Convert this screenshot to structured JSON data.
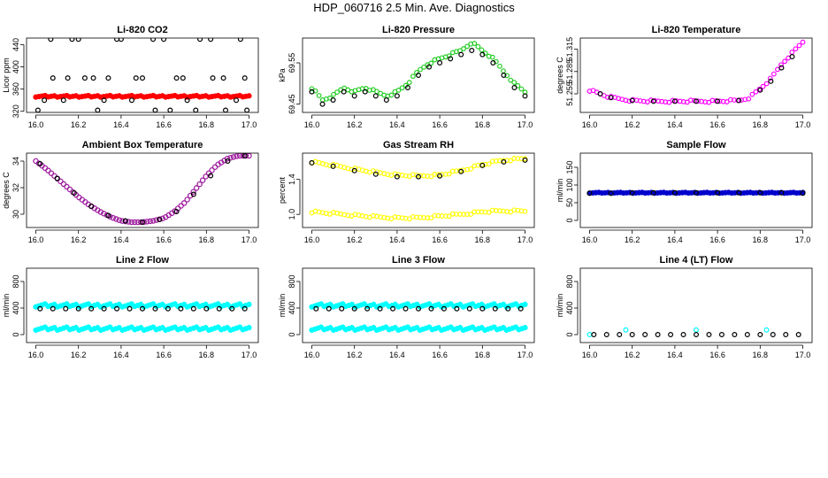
{
  "figure": {
    "title": "HDP_060716  2.5 Min. Ave. Diagnostics"
  },
  "colors": {
    "red": "#ff0000",
    "green": "#22cc22",
    "magenta": "#ff00ff",
    "purple": "#a020a0",
    "yellow": "#ffff00",
    "blue": "#0000cc",
    "cyan": "#00ffff",
    "black": "#000000"
  },
  "chart_data": [
    {
      "id": "co2",
      "type": "scatter",
      "title": "Li-820 CO2",
      "ylabel": "Licor ppm",
      "xlim": [
        16.0,
        17.0
      ],
      "ylim": [
        318,
        452
      ],
      "xticks": [
        "16.0",
        "16.2",
        "16.4",
        "16.6",
        "16.8",
        "17.0"
      ],
      "xtick_values": [
        16.0,
        16.2,
        16.4,
        16.6,
        16.8,
        17.0
      ],
      "yticks": [
        "320",
        "360",
        "400",
        "440"
      ],
      "ytick_values": [
        320,
        360,
        400,
        440
      ],
      "series": [
        {
          "name": "instrument",
          "color": "red",
          "style": "band",
          "x": [
            16.0,
            17.0
          ],
          "y": [
            347,
            347
          ],
          "spread": 4
        },
        {
          "name": "averages",
          "color": "black",
          "style": "open",
          "x": [
            16.01,
            16.04,
            16.08,
            16.13,
            16.17,
            16.23,
            16.29,
            16.34,
            16.4,
            16.45,
            16.5,
            16.56,
            16.6,
            16.66,
            16.71,
            16.77,
            16.83,
            16.89,
            16.94,
            16.99
          ],
          "y": [
            322,
            340,
            380,
            340,
            450,
            380,
            322,
            380,
            450,
            340,
            380,
            322,
            450,
            380,
            340,
            450,
            380,
            322,
            340,
            322
          ]
        },
        {
          "name": "averages-top",
          "color": "black",
          "style": "open",
          "x": [
            16.07,
            16.15,
            16.2,
            16.27,
            16.32,
            16.38,
            16.47,
            16.55,
            16.63,
            16.69,
            16.75,
            16.82,
            16.88,
            16.96,
            16.98
          ],
          "y": [
            450,
            380,
            450,
            380,
            340,
            450,
            380,
            450,
            322,
            380,
            322,
            450,
            380,
            450,
            380
          ]
        }
      ]
    },
    {
      "id": "pressure",
      "type": "scatter",
      "title": "Li-820 Pressure",
      "ylabel": "kPa",
      "xlim": [
        16.0,
        17.0
      ],
      "ylim": [
        69.43,
        69.61
      ],
      "xticks": [
        "16.0",
        "16.2",
        "16.4",
        "16.6",
        "16.8",
        "17.0"
      ],
      "xtick_values": [
        16.0,
        16.2,
        16.4,
        16.6,
        16.8,
        17.0
      ],
      "yticks": [
        "69.45",
        "69.55"
      ],
      "ytick_values": [
        69.45,
        69.55
      ],
      "series": [
        {
          "name": "instrument",
          "color": "green",
          "style": "open",
          "x": [
            16.0,
            16.05,
            16.1,
            16.15,
            16.2,
            16.25,
            16.3,
            16.35,
            16.4,
            16.45,
            16.5,
            16.55,
            16.6,
            16.65,
            16.7,
            16.75,
            16.8,
            16.85,
            16.9,
            16.95,
            17.0
          ],
          "y": [
            69.49,
            69.46,
            69.47,
            69.49,
            69.48,
            69.49,
            69.48,
            69.47,
            69.48,
            69.5,
            69.53,
            69.55,
            69.56,
            69.57,
            69.58,
            69.6,
            69.58,
            69.56,
            69.53,
            69.5,
            69.48
          ]
        },
        {
          "name": "averages",
          "color": "black",
          "style": "open",
          "x": [
            16.0,
            16.05,
            16.1,
            16.15,
            16.2,
            16.25,
            16.3,
            16.35,
            16.4,
            16.45,
            16.5,
            16.55,
            16.6,
            16.65,
            16.7,
            16.75,
            16.8,
            16.85,
            16.9,
            16.95,
            17.0
          ],
          "y": [
            69.48,
            69.45,
            69.46,
            69.48,
            69.47,
            69.48,
            69.47,
            69.46,
            69.47,
            69.49,
            69.52,
            69.54,
            69.55,
            69.56,
            69.57,
            69.58,
            69.57,
            69.55,
            69.52,
            69.49,
            69.47
          ]
        }
      ]
    },
    {
      "id": "licor-temp",
      "type": "scatter",
      "title": "Li-820 Temperature",
      "ylabel": "degrees C",
      "xlim": [
        16.0,
        17.0
      ],
      "ylim": [
        51.23,
        51.33
      ],
      "xticks": [
        "16.0",
        "16.2",
        "16.4",
        "16.6",
        "16.8",
        "17.0"
      ],
      "xtick_values": [
        16.0,
        16.2,
        16.4,
        16.6,
        16.8,
        17.0
      ],
      "yticks": [
        "51.255",
        "51.285",
        "51.315"
      ],
      "ytick_values": [
        51.255,
        51.285,
        51.315
      ],
      "series": [
        {
          "name": "instrument",
          "color": "magenta",
          "style": "open",
          "x": [
            16.0,
            16.05,
            16.1,
            16.15,
            16.2,
            16.3,
            16.4,
            16.5,
            16.6,
            16.7,
            16.75,
            16.8,
            16.85,
            16.9,
            16.95,
            17.0
          ],
          "y": [
            51.26,
            51.255,
            51.25,
            51.248,
            51.246,
            51.245,
            51.245,
            51.245,
            51.245,
            51.246,
            51.25,
            51.262,
            51.275,
            51.295,
            51.31,
            51.325
          ]
        },
        {
          "name": "averages",
          "color": "black",
          "style": "open",
          "x": [
            16.05,
            16.1,
            16.2,
            16.3,
            16.4,
            16.5,
            16.6,
            16.7,
            16.8,
            16.85,
            16.9,
            16.95
          ],
          "y": [
            51.255,
            51.25,
            51.246,
            51.245,
            51.245,
            51.245,
            51.245,
            51.246,
            51.26,
            51.272,
            51.29,
            51.305
          ]
        }
      ]
    },
    {
      "id": "box-temp",
      "type": "line",
      "title": "Ambient Box Temperature",
      "ylabel": "degrees C",
      "xlim": [
        16.0,
        17.0
      ],
      "ylim": [
        29.0,
        34.6
      ],
      "xticks": [
        "16.0",
        "16.2",
        "16.4",
        "16.6",
        "16.8",
        "17.0"
      ],
      "xtick_values": [
        16.0,
        16.2,
        16.4,
        16.6,
        16.8,
        17.0
      ],
      "yticks": [
        "30",
        "32",
        "34"
      ],
      "ytick_values": [
        30,
        32,
        34
      ],
      "series": [
        {
          "name": "instrument",
          "color": "purple",
          "style": "line",
          "x": [
            16.0,
            16.05,
            16.1,
            16.15,
            16.2,
            16.25,
            16.3,
            16.35,
            16.4,
            16.45,
            16.5,
            16.55,
            16.6,
            16.65,
            16.7,
            16.75,
            16.8,
            16.85,
            16.9,
            16.95,
            17.0
          ],
          "y": [
            34.0,
            33.4,
            32.7,
            32.0,
            31.3,
            30.7,
            30.2,
            29.8,
            29.5,
            29.4,
            29.4,
            29.5,
            29.7,
            30.2,
            30.9,
            31.9,
            32.9,
            33.7,
            34.2,
            34.4,
            34.4
          ]
        },
        {
          "name": "averages",
          "color": "black",
          "style": "open",
          "x": [
            16.02,
            16.1,
            16.18,
            16.26,
            16.34,
            16.42,
            16.5,
            16.58,
            16.66,
            16.74,
            16.82,
            16.9,
            16.98
          ],
          "y": [
            33.8,
            32.7,
            31.6,
            30.6,
            29.9,
            29.5,
            29.4,
            29.6,
            30.2,
            31.5,
            32.9,
            34.0,
            34.4
          ]
        }
      ]
    },
    {
      "id": "gas-rh",
      "type": "scatter",
      "title": "Gas Stream RH",
      "ylabel": "percent",
      "xlim": [
        16.0,
        17.0
      ],
      "ylim": [
        0.85,
        1.7
      ],
      "xticks": [
        "16.0",
        "16.2",
        "16.4",
        "16.6",
        "16.8",
        "17.0"
      ],
      "xtick_values": [
        16.0,
        16.2,
        16.4,
        16.6,
        16.8,
        17.0
      ],
      "yticks": [
        "1.0",
        "1.4"
      ],
      "ytick_values": [
        1.0,
        1.4
      ],
      "series": [
        {
          "name": "upper",
          "color": "yellow",
          "style": "open",
          "x": [
            16.0,
            16.1,
            16.2,
            16.3,
            16.4,
            16.5,
            16.6,
            16.7,
            16.8,
            16.9,
            17.0
          ],
          "y": [
            1.6,
            1.56,
            1.52,
            1.48,
            1.45,
            1.44,
            1.45,
            1.5,
            1.57,
            1.62,
            1.64
          ]
        },
        {
          "name": "lower",
          "color": "yellow",
          "style": "open",
          "x": [
            16.0,
            16.1,
            16.2,
            16.3,
            16.4,
            16.5,
            16.6,
            16.7,
            16.8,
            16.9,
            17.0
          ],
          "y": [
            1.03,
            1.01,
            0.99,
            0.97,
            0.96,
            0.96,
            0.98,
            1.0,
            1.03,
            1.04,
            1.04
          ]
        },
        {
          "name": "averages",
          "color": "black",
          "style": "open",
          "x": [
            16.0,
            16.1,
            16.2,
            16.3,
            16.4,
            16.5,
            16.6,
            16.7,
            16.8,
            16.9,
            17.0
          ],
          "y": [
            1.59,
            1.55,
            1.5,
            1.46,
            1.43,
            1.43,
            1.44,
            1.49,
            1.56,
            1.6,
            1.62
          ]
        }
      ]
    },
    {
      "id": "sample-flow",
      "type": "scatter",
      "title": "Sample Flow",
      "ylabel": "ml/min",
      "xlim": [
        16.0,
        17.0
      ],
      "ylim": [
        -20,
        190
      ],
      "xticks": [
        "16.0",
        "16.2",
        "16.4",
        "16.6",
        "16.8",
        "17.0"
      ],
      "xtick_values": [
        16.0,
        16.2,
        16.4,
        16.6,
        16.8,
        17.0
      ],
      "yticks": [
        "0",
        "50",
        "100",
        "150"
      ],
      "ytick_values": [
        0,
        50,
        100,
        150
      ],
      "series": [
        {
          "name": "instrument",
          "color": "blue",
          "style": "band",
          "x": [
            16.0,
            17.0
          ],
          "y": [
            78,
            78
          ],
          "spread": 2
        },
        {
          "name": "averages",
          "color": "black",
          "style": "open",
          "x": [
            16.0,
            16.1,
            16.2,
            16.3,
            16.4,
            16.5,
            16.6,
            16.7,
            16.8,
            16.9,
            17.0
          ],
          "y": [
            77,
            77,
            78,
            78,
            78,
            78,
            78,
            78,
            78,
            78,
            77
          ]
        }
      ]
    },
    {
      "id": "line2-flow",
      "type": "scatter",
      "title": "Line 2 Flow",
      "ylabel": "ml/min",
      "xlim": [
        16.0,
        17.0
      ],
      "ylim": [
        -120,
        1000
      ],
      "xticks": [
        "16.0",
        "16.2",
        "16.4",
        "16.6",
        "16.8",
        "17.0"
      ],
      "xtick_values": [
        16.0,
        16.2,
        16.4,
        16.6,
        16.8,
        17.0
      ],
      "yticks": [
        "0",
        "400",
        "800"
      ],
      "ytick_values": [
        0,
        400,
        800
      ],
      "series": [
        {
          "name": "upper",
          "color": "cyan",
          "style": "band",
          "x": [
            16.0,
            17.0
          ],
          "y": [
            440,
            440
          ],
          "spread": 8
        },
        {
          "name": "lower",
          "color": "cyan",
          "style": "band",
          "x": [
            16.0,
            17.0
          ],
          "y": [
            90,
            90
          ],
          "spread": 8
        },
        {
          "name": "averages",
          "color": "black",
          "style": "open",
          "x": [
            16.02,
            16.08,
            16.14,
            16.2,
            16.26,
            16.32,
            16.38,
            16.44,
            16.5,
            16.56,
            16.62,
            16.68,
            16.74,
            16.8,
            16.86,
            16.92,
            16.98
          ],
          "y": [
            390,
            390,
            390,
            390,
            390,
            390,
            390,
            390,
            390,
            390,
            390,
            390,
            390,
            390,
            390,
            390,
            390
          ]
        }
      ]
    },
    {
      "id": "line3-flow",
      "type": "scatter",
      "title": "Line 3 Flow",
      "ylabel": "ml/min",
      "xlim": [
        16.0,
        17.0
      ],
      "ylim": [
        -120,
        1000
      ],
      "xticks": [
        "16.0",
        "16.2",
        "16.4",
        "16.6",
        "16.8",
        "17.0"
      ],
      "xtick_values": [
        16.0,
        16.2,
        16.4,
        16.6,
        16.8,
        17.0
      ],
      "yticks": [
        "0",
        "400",
        "800"
      ],
      "ytick_values": [
        0,
        400,
        800
      ],
      "series": [
        {
          "name": "upper",
          "color": "cyan",
          "style": "band",
          "x": [
            16.0,
            17.0
          ],
          "y": [
            440,
            440
          ],
          "spread": 8
        },
        {
          "name": "lower",
          "color": "cyan",
          "style": "band",
          "x": [
            16.0,
            17.0
          ],
          "y": [
            90,
            90
          ],
          "spread": 8
        },
        {
          "name": "averages",
          "color": "black",
          "style": "open",
          "x": [
            16.02,
            16.08,
            16.14,
            16.2,
            16.26,
            16.32,
            16.38,
            16.44,
            16.5,
            16.56,
            16.62,
            16.68,
            16.74,
            16.8,
            16.86,
            16.92,
            16.98
          ],
          "y": [
            390,
            390,
            390,
            390,
            390,
            390,
            390,
            390,
            390,
            390,
            390,
            390,
            390,
            390,
            390,
            390,
            390
          ]
        }
      ]
    },
    {
      "id": "line4-flow",
      "type": "scatter",
      "title": "Line 4 (LT) Flow",
      "ylabel": "ml/min",
      "xlim": [
        16.0,
        17.0
      ],
      "ylim": [
        -120,
        1000
      ],
      "xticks": [
        "16.0",
        "16.2",
        "16.4",
        "16.6",
        "16.8",
        "17.0"
      ],
      "xtick_values": [
        16.0,
        16.2,
        16.4,
        16.6,
        16.8,
        17.0
      ],
      "yticks": [
        "0",
        "400",
        "800"
      ],
      "ytick_values": [
        0,
        400,
        800
      ],
      "series": [
        {
          "name": "instrument",
          "color": "cyan",
          "style": "open",
          "x": [
            16.0,
            16.17,
            16.5,
            16.83
          ],
          "y": [
            0,
            70,
            70,
            70
          ]
        },
        {
          "name": "averages",
          "color": "black",
          "style": "open",
          "x": [
            16.02,
            16.08,
            16.14,
            16.2,
            16.26,
            16.32,
            16.38,
            16.44,
            16.5,
            16.56,
            16.62,
            16.68,
            16.74,
            16.8,
            16.86,
            16.92,
            16.98
          ],
          "y": [
            0,
            0,
            0,
            0,
            0,
            0,
            0,
            0,
            0,
            0,
            0,
            0,
            0,
            0,
            0,
            0,
            0
          ]
        }
      ]
    }
  ]
}
